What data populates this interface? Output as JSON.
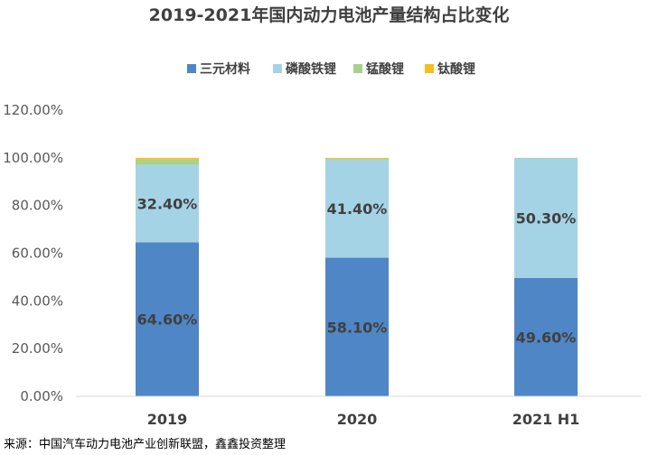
{
  "chart_data": {
    "type": "bar",
    "stacked": true,
    "title": "2019-2021年国内动力电池产量结构占比变化",
    "categories": [
      "2019",
      "2020",
      "2021 H1"
    ],
    "series": [
      {
        "name": "三元材料",
        "values": [
          64.6,
          58.1,
          49.6
        ],
        "color": "#4f86c6",
        "labels": [
          "64.60%",
          "58.10%",
          "49.60%"
        ]
      },
      {
        "name": "磷酸铁锂",
        "values": [
          32.4,
          41.4,
          50.3
        ],
        "color": "#a5d3e6",
        "labels": [
          "32.40%",
          "41.40%",
          "50.30%"
        ]
      },
      {
        "name": "锰酸锂",
        "values": [
          2.3,
          0.1,
          0.1
        ],
        "color": "#a9d18e",
        "labels": []
      },
      {
        "name": "钛酸锂",
        "values": [
          0.7,
          0.4,
          0.0
        ],
        "color": "#f4c01b",
        "labels": []
      }
    ],
    "xlabel": "",
    "ylabel": "",
    "ylim": [
      0,
      120
    ],
    "yticks": [
      "0.00%",
      "20.00%",
      "40.00%",
      "60.00%",
      "80.00%",
      "100.00%",
      "120.00%"
    ],
    "legend_position": "top",
    "grid": false
  },
  "source_note": "来源：中国汽车动力电池产业创新联盟，鑫鑫投资整理"
}
